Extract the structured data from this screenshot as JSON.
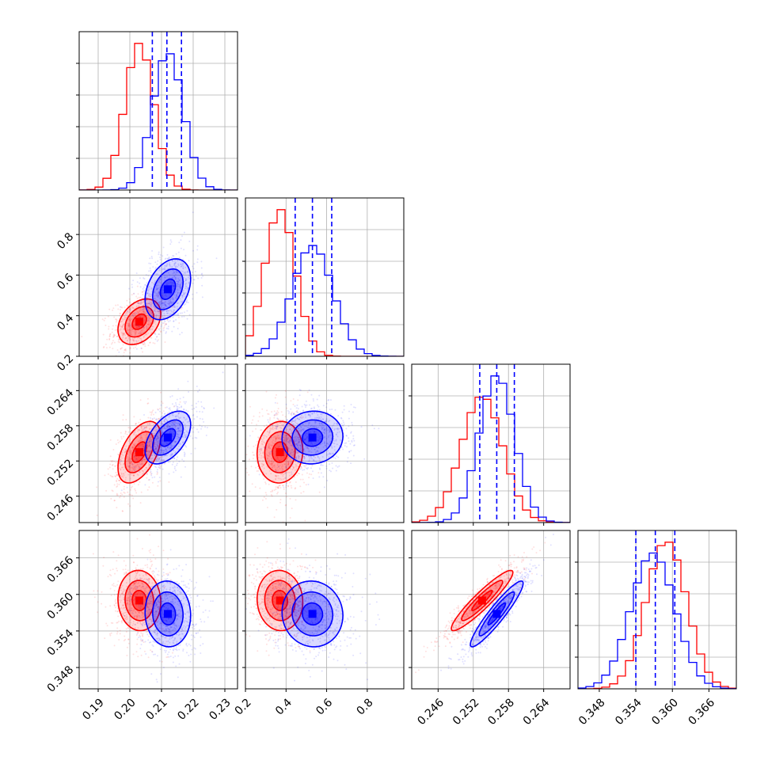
{
  "colors": {
    "red": "#ff0000",
    "blue": "#0000ff",
    "grid": "#b0b0b0"
  },
  "chart_data": {
    "type": "corner",
    "parameters": [
      {
        "range": [
          0.184,
          0.234
        ],
        "ticks": [
          "0.19",
          "0.20",
          "0.21",
          "0.22",
          "0.23"
        ]
      },
      {
        "range": [
          0.2,
          0.98
        ],
        "ticks": [
          "0.2",
          "0.4",
          "0.6",
          "0.8"
        ]
      },
      {
        "range": [
          0.2415,
          0.2685
        ],
        "ticks": [
          "0.246",
          "0.252",
          "0.258",
          "0.264"
        ]
      },
      {
        "range": [
          0.3445,
          0.3705
        ],
        "ticks": [
          "0.348",
          "0.354",
          "0.360",
          "0.366"
        ]
      }
    ],
    "series": [
      {
        "color": "red",
        "mean": [
          0.203,
          0.37,
          0.2535,
          0.359
        ],
        "std": [
          0.0045,
          0.075,
          0.0035,
          0.0033
        ]
      },
      {
        "color": "blue",
        "mean": [
          0.212,
          0.53,
          0.256,
          0.3568
        ],
        "std": [
          0.0048,
          0.1,
          0.003,
          0.0036
        ]
      }
    ],
    "correlations": {
      "0-1": 0.35,
      "0-2": 0.5,
      "1-2": 0.05,
      "0-3": -0.05,
      "1-3": -0.05,
      "2-3": 0.93
    },
    "quantile_lines": {
      "color": "blue",
      "values": [
        [
          0.2071,
          0.2117,
          0.2163
        ],
        [
          0.445,
          0.53,
          0.625
        ],
        [
          0.2531,
          0.256,
          0.259
        ],
        [
          0.354,
          0.3572,
          0.3604
        ]
      ]
    },
    "contour_levels": [
      0.5,
      1.0,
      1.5
    ],
    "grid": true
  }
}
